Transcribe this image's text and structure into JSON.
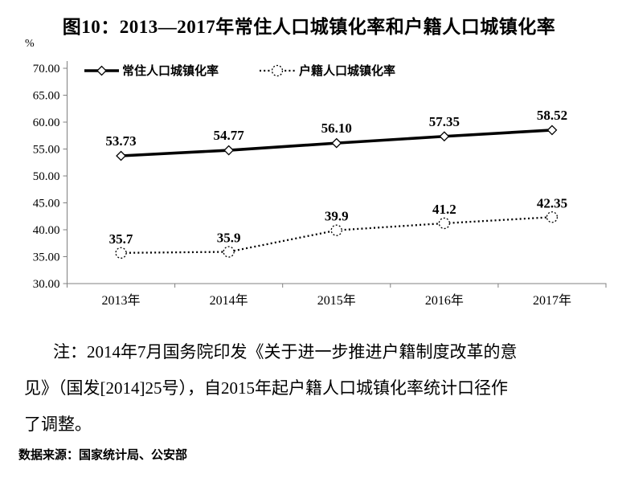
{
  "chart_data": {
    "type": "line",
    "title": "图10：2013—2017年常住人口城镇化率和户籍人口城镇化率",
    "ylabel": "%",
    "xlabel": "",
    "categories": [
      "2013年",
      "2014年",
      "2015年",
      "2016年",
      "2017年"
    ],
    "series": [
      {
        "name": "常住人口城镇化率",
        "values": [
          53.73,
          54.77,
          56.1,
          57.35,
          58.52
        ],
        "labels": [
          "53.73",
          "54.77",
          "56.10",
          "57.35",
          "58.52"
        ],
        "line_style": "solid",
        "marker": "diamond"
      },
      {
        "name": "户籍人口城镇化率",
        "values": [
          35.7,
          35.9,
          39.9,
          41.2,
          42.35
        ],
        "labels": [
          "35.7",
          "35.9",
          "39.9",
          "41.2",
          "42.35"
        ],
        "line_style": "dotted",
        "marker": "circle"
      }
    ],
    "ylim": [
      30,
      70
    ],
    "ytick_step": 5,
    "ytick_labels": [
      "70.00",
      "65.00",
      "60.00",
      "55.00",
      "50.00",
      "45.00",
      "40.00",
      "35.00",
      "30.00"
    ],
    "grid": false,
    "legend_position": "top-left",
    "colors": {
      "series": "#000000",
      "axis": "#808080",
      "marker_fill": "#ffffff",
      "text": "#000000"
    }
  },
  "note": {
    "lines": [
      "注：2014年7月国务院印发《关于进一步推进户籍制度改革的意",
      "见》（国发[2014]25号），自2015年起户籍人口城镇化率统计口径作",
      "了调整。"
    ]
  },
  "source": {
    "text": "数据来源：国家统计局、公安部"
  }
}
